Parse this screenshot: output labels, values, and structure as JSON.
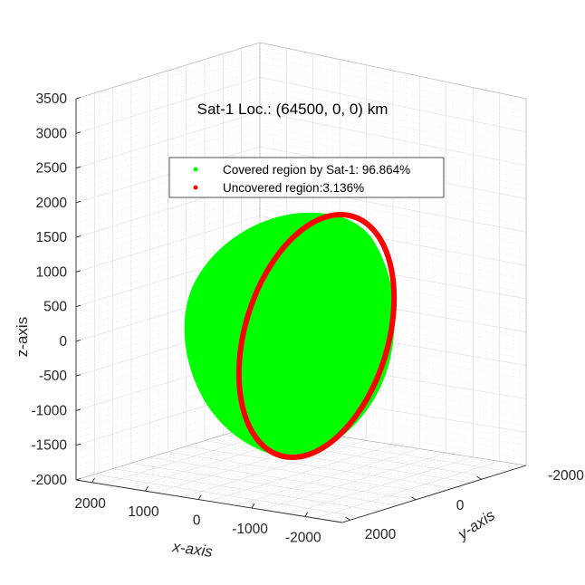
{
  "chart_data": {
    "type": "3d-scatter",
    "title": "Sat-1 Loc.: (64500, 0, 0) km",
    "xlabel": "x-axis",
    "ylabel": "y-axis",
    "zlabel": "z-axis",
    "x_ticks": [
      "2000",
      "1000",
      "0",
      "-1000",
      "-2000"
    ],
    "y_ticks": [
      "-2000",
      "0",
      "2000"
    ],
    "z_ticks": [
      "3500",
      "3000",
      "2500",
      "2000",
      "1500",
      "1000",
      "500",
      "0",
      "-500",
      "-1000",
      "-1500",
      "-2000"
    ],
    "xlim": [
      -2500,
      2500
    ],
    "ylim": [
      -2500,
      2500
    ],
    "zlim": [
      -2000,
      3500
    ],
    "grid": true,
    "legend_position": "top-center",
    "series": [
      {
        "name": "Covered region by Sat-1: 96.864%",
        "color": "#00ff00",
        "marker": "point"
      },
      {
        "name": "Uncovered region:3.136%",
        "color": "#ff0000",
        "marker": "point"
      }
    ],
    "sphere_radius_km": 1737
  }
}
